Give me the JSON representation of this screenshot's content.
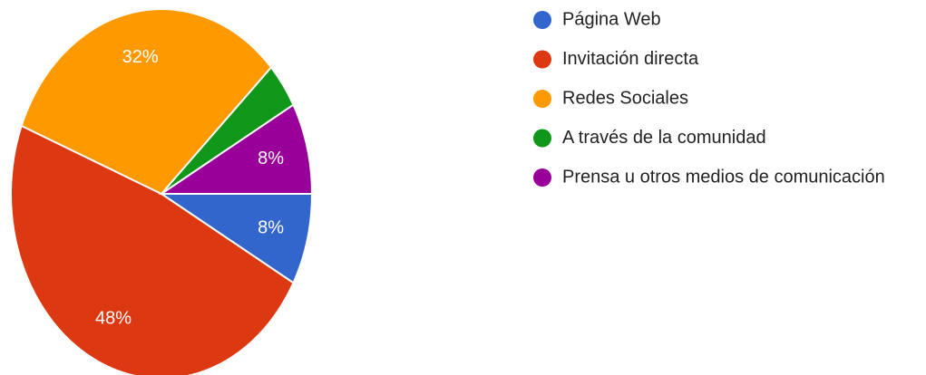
{
  "chart_data": {
    "type": "pie",
    "categories": [
      "Página Web",
      "Invitación directa",
      "Redes Sociales",
      "A través de la comunidad",
      "Prensa u otros medios de comunicación"
    ],
    "values": [
      8,
      48,
      32,
      4,
      8
    ],
    "value_labels": [
      "8%",
      "48%",
      "32%",
      null,
      "8%"
    ],
    "colors": [
      "#3366cc",
      "#dc3912",
      "#ff9900",
      "#109618",
      "#990099"
    ],
    "legend": "right"
  }
}
